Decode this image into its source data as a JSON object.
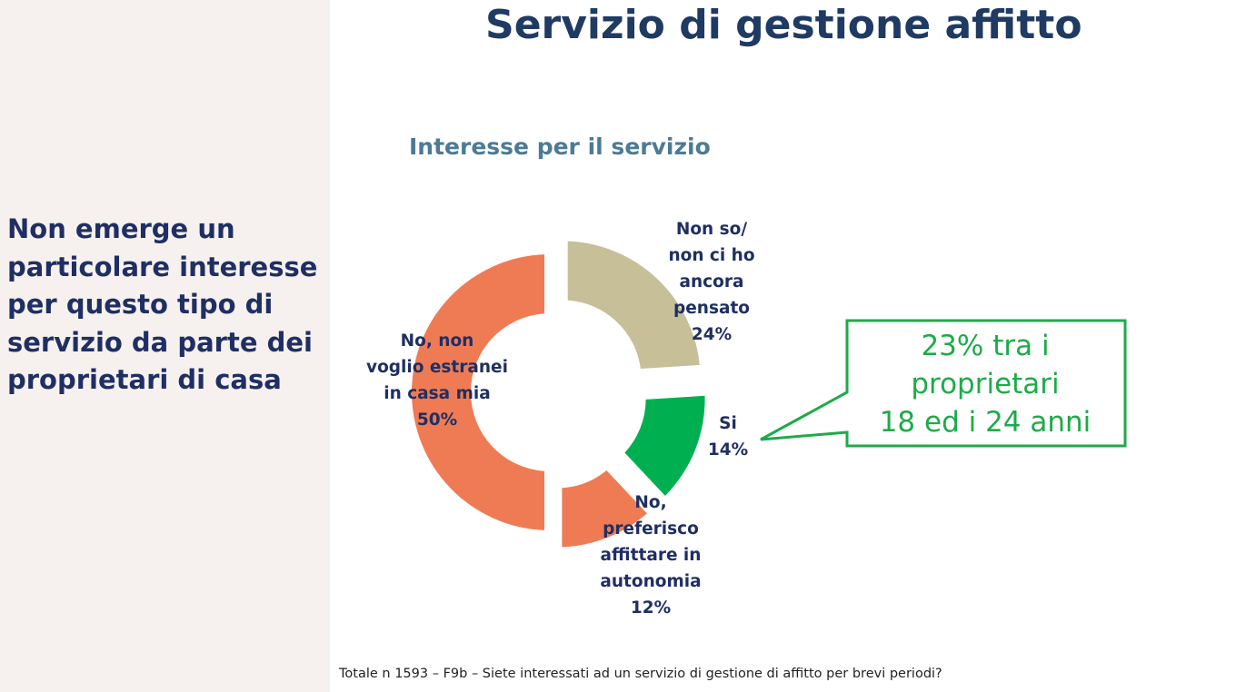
{
  "slide_title": "Servizio di gestione affitto",
  "sidebar_text": "Non emerge un particolare interesse per questo tipo di servizio da parte dei proprietari di casa",
  "callout": {
    "text": "23% tra i\nproprietari\n18 ed i 24 anni",
    "color": "#1faa4a"
  },
  "footnote": "Totale n 1593 – F9b – Siete interessati ad un servizio di gestione di affitto per brevi periodi?",
  "chart_data": {
    "type": "pie",
    "title": "Interesse per il servizio",
    "donut": true,
    "slices": [
      {
        "label": "Non so/\nnon ci ho\nancora\npensato",
        "value": 24,
        "value_label": "24%",
        "color": "#c7bf98"
      },
      {
        "label": "Si",
        "value": 14,
        "value_label": "14%",
        "color": "#00b050"
      },
      {
        "label": "No,\npreferisco\naffittare in\nautonomia",
        "value": 12,
        "value_label": "12%",
        "color": "#ef7b55"
      },
      {
        "label": "No, non\nvoglio estranei\nin casa mia",
        "value": 50,
        "value_label": "50%",
        "color": "#ef7b55"
      }
    ]
  }
}
